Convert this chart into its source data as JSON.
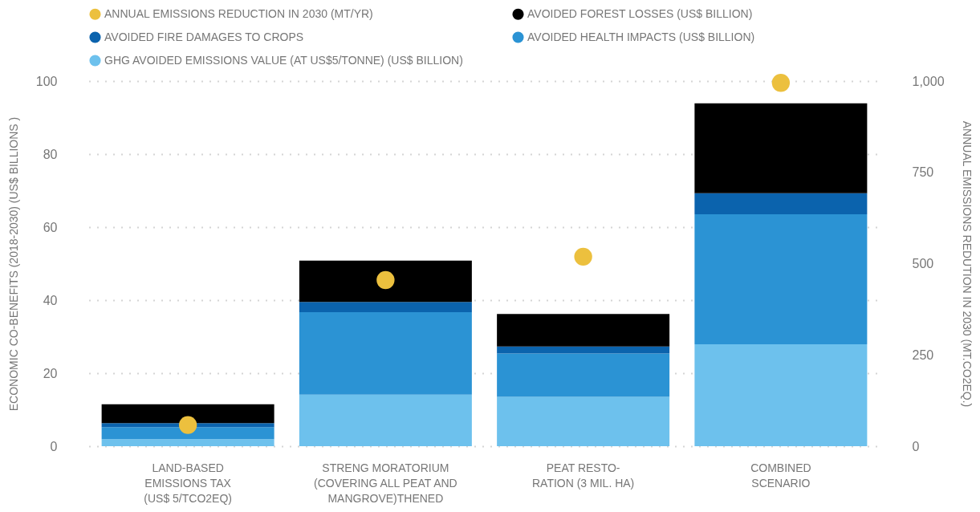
{
  "chart_data": {
    "type": "bar",
    "stacked": true,
    "categories": [
      "LAND-BASED\nEMISSIONS TAX\n(US$ 5/TCO2EQ)",
      "STRENG MORATORIUM\n(COVERING ALL PEAT AND\nMANGROVE)THENED",
      "PEAT RESTO-\nRATION (3 MIL. HA)",
      "COMBINED\nSCENARIO"
    ],
    "series": [
      {
        "name": "GHG AVOIDED EMISSIONS VALUE (AT US$5/TONNE) (US$ BILLION)",
        "color": "#6dc1ed",
        "values": [
          1.9,
          14.1,
          13.5,
          27.9
        ]
      },
      {
        "name": "AVOIDED HEALTH IMPACTS (US$ BILLION)",
        "color": "#2b93d4",
        "values": [
          3.3,
          22.6,
          11.9,
          35.6
        ]
      },
      {
        "name": "AVOIDED FIRE DAMAGES TO CROPS",
        "color": "#0b63ad",
        "values": [
          1.1,
          2.8,
          1.9,
          5.8
        ]
      },
      {
        "name": "AVOIDED FOREST LOSSES (US$ BILLION)",
        "color": "#000000",
        "values": [
          5.2,
          11.3,
          8.9,
          24.6
        ]
      },
      {
        "name": "ANNUAL EMISSIONS REDUCTION IN 2030 (MT/YR)",
        "color": "#ecc03e",
        "type": "scatter",
        "axis": "y2",
        "marker": "circle",
        "values": [
          58,
          455,
          519,
          995
        ]
      }
    ],
    "ylabel": "ECONOMIC CO-BENEFITS (2018-2030) (US$ BILLIONS )",
    "y2label": "ANNUAL EMISSIONS REDUTION IN 2030 (MT.CO2EQ.)",
    "ylim": [
      0,
      100
    ],
    "yticks": [
      0,
      20,
      40,
      60,
      80,
      100
    ],
    "y2lim": [
      0,
      1000
    ],
    "y2ticks": [
      0,
      250,
      500,
      750,
      {
        "value": 1000,
        "label": "1,000"
      }
    ],
    "grid": "y",
    "legend": "top left"
  }
}
